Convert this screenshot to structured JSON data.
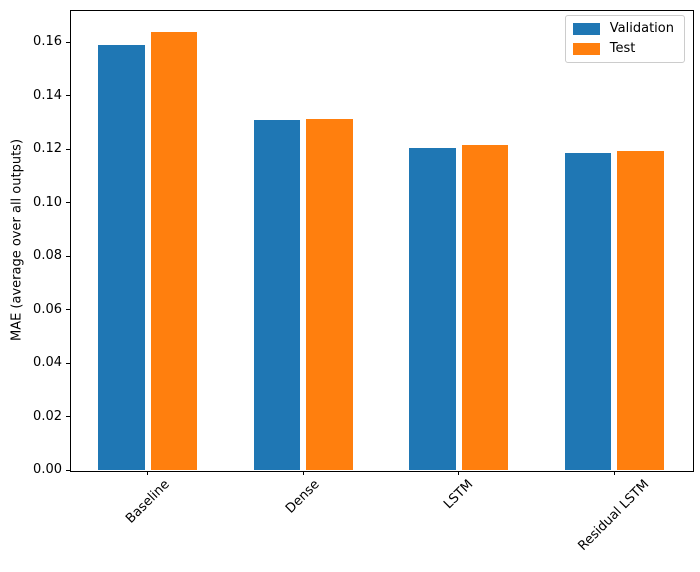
{
  "chart_data": {
    "type": "bar",
    "categories": [
      "Baseline",
      "Dense",
      "LSTM",
      "Residual LSTM"
    ],
    "series": [
      {
        "name": "Validation",
        "color": "#1f77b4",
        "values": [
          0.1589,
          0.1308,
          0.1203,
          0.1184
        ]
      },
      {
        "name": "Test",
        "color": "#ff7f0e",
        "values": [
          0.1638,
          0.1311,
          0.1217,
          0.1193
        ]
      }
    ],
    "title": "",
    "xlabel": "",
    "ylabel": "MAE (average over all outputs)",
    "ylim": [
      0,
      0.172
    ],
    "yticks": [
      0.0,
      0.02,
      0.04,
      0.06,
      0.08,
      0.1,
      0.12,
      0.14,
      0.16
    ],
    "ytick_format": "0.00",
    "grid": false,
    "legend_position": "upper right",
    "background_color": "#ffffff",
    "spine_color": "#000000"
  }
}
